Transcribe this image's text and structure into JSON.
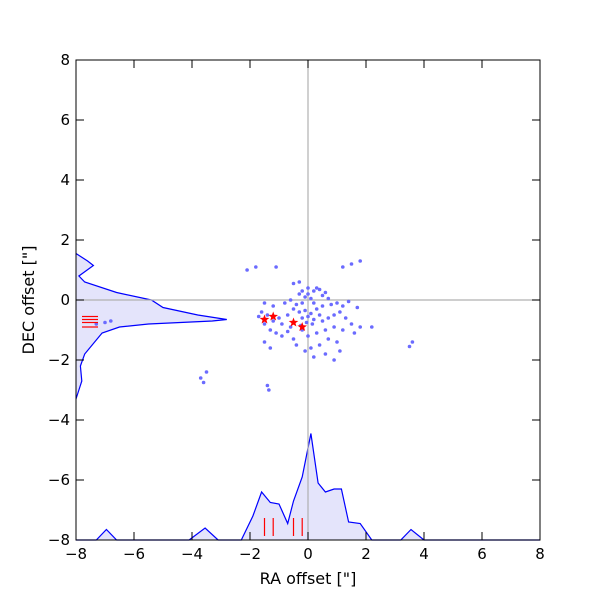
{
  "chart_data": {
    "type": "scatter",
    "xlabel": "RA offset [\"]",
    "ylabel": "DEC offset [\"]",
    "xlim": [
      -8,
      8
    ],
    "ylim": [
      -8,
      8
    ],
    "xticks": [
      -8,
      -6,
      -4,
      -2,
      0,
      2,
      4,
      6,
      8
    ],
    "yticks": [
      -8,
      -6,
      -4,
      -2,
      0,
      2,
      4,
      6,
      8
    ],
    "grid": false,
    "reference_lines": {
      "x": 0,
      "y": 0,
      "color": "#b0b0b0"
    },
    "colors": {
      "points": "#6b6bff",
      "stars": "#ff0000",
      "kde_line": "#0000ff",
      "kde_fill": "#e4e4fb",
      "markers": "#ff0000"
    },
    "points": [
      [
        -2.1,
        1.0
      ],
      [
        -1.8,
        1.1
      ],
      [
        -1.1,
        1.1
      ],
      [
        -0.5,
        0.55
      ],
      [
        -0.3,
        0.6
      ],
      [
        1.2,
        1.1
      ],
      [
        1.5,
        1.2
      ],
      [
        1.8,
        1.3
      ],
      [
        -0.2,
        0.3
      ],
      [
        0.0,
        0.2
      ],
      [
        0.2,
        0.3
      ],
      [
        0.4,
        0.35
      ],
      [
        0.6,
        0.25
      ],
      [
        -0.1,
        0.1
      ],
      [
        0.1,
        0.05
      ],
      [
        0.5,
        0.15
      ],
      [
        0.3,
        0.4
      ],
      [
        0.0,
        0.4
      ],
      [
        -0.3,
        0.2
      ],
      [
        0.7,
        0.05
      ],
      [
        -1.5,
        -0.1
      ],
      [
        -1.2,
        -0.2
      ],
      [
        -0.8,
        -0.1
      ],
      [
        -0.6,
        0.0
      ],
      [
        -0.4,
        -0.15
      ],
      [
        -0.2,
        -0.1
      ],
      [
        0.2,
        -0.1
      ],
      [
        0.5,
        -0.2
      ],
      [
        0.8,
        -0.15
      ],
      [
        1.0,
        -0.1
      ],
      [
        1.2,
        -0.2
      ],
      [
        1.4,
        -0.05
      ],
      [
        1.7,
        -0.25
      ],
      [
        -0.5,
        -0.3
      ],
      [
        -0.3,
        -0.4
      ],
      [
        -0.1,
        -0.35
      ],
      [
        0.1,
        -0.45
      ],
      [
        0.3,
        -0.3
      ],
      [
        0.0,
        -0.55
      ],
      [
        -0.2,
        -0.6
      ],
      [
        0.2,
        -0.65
      ],
      [
        0.4,
        -0.5
      ],
      [
        -0.05,
        -0.75
      ],
      [
        0.15,
        -0.8
      ],
      [
        -0.25,
        -0.85
      ],
      [
        0.5,
        -0.7
      ],
      [
        0.7,
        -0.6
      ],
      [
        0.9,
        -0.5
      ],
      [
        1.1,
        -0.4
      ],
      [
        1.3,
        -0.6
      ],
      [
        -1.6,
        -0.4
      ],
      [
        -1.4,
        -0.5
      ],
      [
        -1.2,
        -0.7
      ],
      [
        -1.0,
        -0.6
      ],
      [
        -0.9,
        -0.8
      ],
      [
        -0.7,
        -0.5
      ],
      [
        -0.6,
        -0.9
      ],
      [
        -1.5,
        -0.8
      ],
      [
        -1.7,
        -0.55
      ],
      [
        -1.3,
        -1.0
      ],
      [
        -1.1,
        -1.1
      ],
      [
        -0.9,
        -1.2
      ],
      [
        -0.7,
        -1.05
      ],
      [
        -0.5,
        -1.3
      ],
      [
        -0.2,
        -1.0
      ],
      [
        0.0,
        -1.2
      ],
      [
        0.3,
        -1.1
      ],
      [
        0.6,
        -1.0
      ],
      [
        0.9,
        -0.9
      ],
      [
        1.2,
        -1.0
      ],
      [
        1.5,
        -0.8
      ],
      [
        1.8,
        -0.9
      ],
      [
        2.2,
        -0.9
      ],
      [
        1.6,
        -1.1
      ],
      [
        -0.4,
        -1.5
      ],
      [
        0.1,
        -1.6
      ],
      [
        0.4,
        -1.5
      ],
      [
        0.7,
        -1.3
      ],
      [
        1.0,
        -1.4
      ],
      [
        1.1,
        -1.7
      ],
      [
        0.6,
        -1.8
      ],
      [
        0.2,
        -1.9
      ],
      [
        -0.1,
        -1.7
      ],
      [
        0.9,
        -2.0
      ],
      [
        -1.5,
        -1.4
      ],
      [
        -1.3,
        -1.6
      ],
      [
        3.5,
        -1.55
      ],
      [
        3.6,
        -1.4
      ],
      [
        -7.3,
        -0.8
      ],
      [
        -7.0,
        -0.75
      ],
      [
        -6.8,
        -0.7
      ],
      [
        -3.7,
        -2.6
      ],
      [
        -3.5,
        -2.4
      ],
      [
        -3.6,
        -2.75
      ],
      [
        -1.4,
        -2.85
      ],
      [
        -1.35,
        -3.0
      ]
    ],
    "stars": [
      [
        -1.5,
        -0.65
      ],
      [
        -1.2,
        -0.55
      ],
      [
        -0.5,
        -0.75
      ],
      [
        -0.2,
        -0.9
      ]
    ],
    "ra_kde": [
      [
        -8.0,
        -8.0
      ],
      [
        -7.3,
        -8.0
      ],
      [
        -6.95,
        -7.65
      ],
      [
        -6.6,
        -8.0
      ],
      [
        -4.1,
        -8.0
      ],
      [
        -3.55,
        -7.6
      ],
      [
        -3.1,
        -8.0
      ],
      [
        -2.3,
        -8.0
      ],
      [
        -1.9,
        -7.2
      ],
      [
        -1.6,
        -6.4
      ],
      [
        -1.3,
        -6.75
      ],
      [
        -1.0,
        -6.8
      ],
      [
        -0.7,
        -7.45
      ],
      [
        -0.5,
        -6.7
      ],
      [
        -0.2,
        -5.9
      ],
      [
        0.1,
        -4.45
      ],
      [
        0.35,
        -6.1
      ],
      [
        0.6,
        -6.4
      ],
      [
        0.9,
        -6.3
      ],
      [
        1.15,
        -6.3
      ],
      [
        1.4,
        -7.4
      ],
      [
        1.8,
        -7.45
      ],
      [
        2.2,
        -8.0
      ],
      [
        3.2,
        -8.0
      ],
      [
        3.55,
        -7.65
      ],
      [
        4.0,
        -8.0
      ],
      [
        8.0,
        -8.0
      ]
    ],
    "dec_kde": [
      [
        -8.0,
        1.55
      ],
      [
        -7.6,
        1.3
      ],
      [
        -7.4,
        1.15
      ],
      [
        -7.9,
        0.8
      ],
      [
        -7.7,
        0.6
      ],
      [
        -6.6,
        0.25
      ],
      [
        -5.4,
        0.0
      ],
      [
        -5.0,
        -0.25
      ],
      [
        -3.8,
        -0.5
      ],
      [
        -2.8,
        -0.65
      ],
      [
        -3.3,
        -0.7
      ],
      [
        -5.5,
        -0.8
      ],
      [
        -6.5,
        -0.9
      ],
      [
        -7.1,
        -1.1
      ],
      [
        -7.4,
        -1.45
      ],
      [
        -7.7,
        -1.8
      ],
      [
        -7.85,
        -2.2
      ],
      [
        -7.8,
        -2.7
      ],
      [
        -7.9,
        -3.0
      ],
      [
        -8.0,
        -3.3
      ]
    ],
    "ra_markers": [
      -1.5,
      -1.2,
      -0.5,
      -0.2
    ],
    "dec_markers": [
      -0.55,
      -0.65,
      -0.75,
      -0.9
    ]
  }
}
